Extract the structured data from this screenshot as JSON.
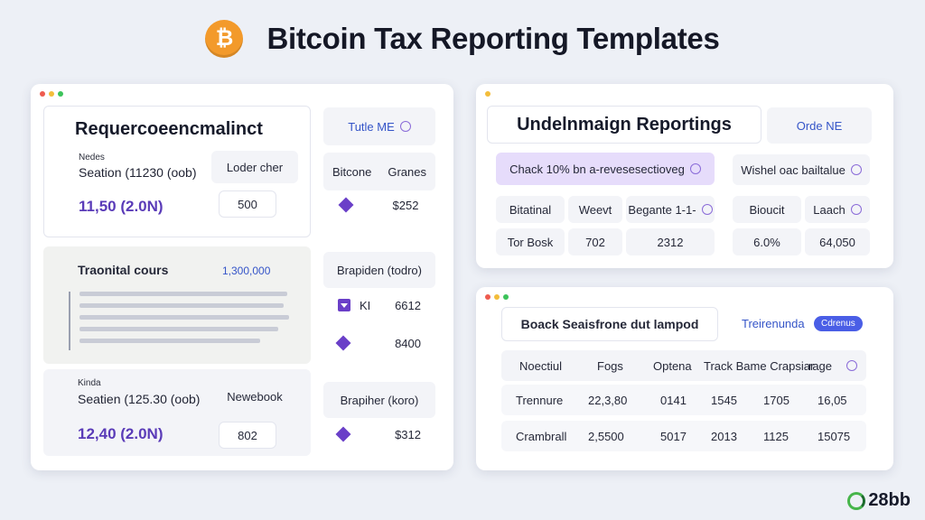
{
  "header": {
    "logo_glyph": "₿",
    "title": "Bitcoin Tax Reporting Templates"
  },
  "brand": {
    "text": "28bb"
  },
  "colors": {
    "bitcoin_orange": "#f39a2b",
    "accent_purple": "#6a3fc8",
    "accent_blue": "#4a5ee6"
  },
  "left_window": {
    "top_panel": {
      "title": "Requercoeencmalinct",
      "tab": "Tutle ME",
      "label_small": "Nedes",
      "section_label": "Seation (11230 (oob)",
      "values": "11,50 (2.0N)",
      "loader_label": "Loder cher",
      "loader_value": "500",
      "row1_a": "Bitcone",
      "row1_b": "Granes",
      "row2_value": "$252"
    },
    "middle_panel": {
      "title": "Traonital cours",
      "amount": "1,300,000"
    },
    "right_col": {
      "r1": "Brapiden (todro)",
      "r2_a": "KI",
      "r2_b": "6612",
      "r3": "8400"
    },
    "bottom_panel": {
      "label_small": "Kinda",
      "section_label": "Seatien (125.30 (oob)",
      "values": "12,40 (2.0N)",
      "newbook_label": "Newebook",
      "newbook_value": "802",
      "right_label": "Brapiher (koro)",
      "right_value": "$312"
    }
  },
  "top_right_window": {
    "title": "Undelnmaign Reportings",
    "tab": "Orde NE",
    "check_text": "Chack 10% bn a-revesesectioveg",
    "wishel_text": "Wishel oac bailtalue",
    "headers": [
      "Bitatinal",
      "Weevt",
      "Begante 1-1-",
      "Bioucit",
      "Laach"
    ],
    "row": [
      "Tor Bosk",
      "702",
      "2312",
      "6.0%",
      "64,050"
    ]
  },
  "bottom_right_window": {
    "title": "Boack Seaisfrone dut lampod",
    "tab": "Treirenunda",
    "pill": "Cdrenus",
    "headers": [
      "Noectiul",
      "Fogs",
      "Optena",
      "Track Bame Crapsiar",
      "rage"
    ],
    "rows": [
      [
        "Trennure",
        "22,3,80",
        "0141",
        "1545",
        "1705",
        "16,05"
      ],
      [
        "Crambrall",
        "2,5500",
        "5017",
        "2013",
        "1125",
        "15075"
      ]
    ]
  }
}
